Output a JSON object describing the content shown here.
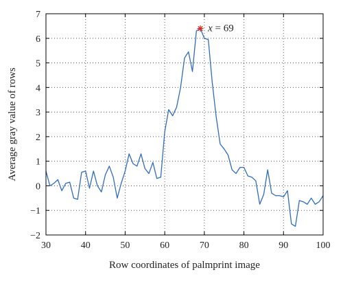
{
  "chart_data": {
    "type": "line",
    "title": "",
    "xlabel": "Row coordinates of palmprint image",
    "ylabel": "Average gray value of rows",
    "xlim": [
      30,
      100
    ],
    "ylim": [
      -2,
      7
    ],
    "xticks": [
      30,
      40,
      50,
      60,
      70,
      80,
      90,
      100
    ],
    "yticks": [
      -2,
      -1,
      0,
      1,
      2,
      3,
      4,
      5,
      6,
      7
    ],
    "grid": true,
    "grid_style": "dotted",
    "series": [
      {
        "color": "#2e6bbf",
        "x": [
          30,
          31,
          32,
          33,
          34,
          35,
          36,
          37,
          38,
          39,
          40,
          41,
          42,
          43,
          44,
          45,
          46,
          47,
          48,
          49,
          50,
          51,
          52,
          53,
          54,
          55,
          56,
          57,
          58,
          59,
          60,
          61,
          62,
          63,
          64,
          65,
          66,
          67,
          68,
          69,
          70,
          71,
          72,
          73,
          74,
          75,
          76,
          77,
          78,
          79,
          80,
          81,
          82,
          83,
          84,
          85,
          86,
          87,
          88,
          89,
          90,
          91,
          92,
          93,
          94,
          95,
          96,
          97,
          98,
          99,
          100
        ],
        "y": [
          0.6,
          0.0,
          0.1,
          0.25,
          -0.2,
          0.1,
          0.15,
          -0.5,
          -0.55,
          0.55,
          0.6,
          -0.1,
          0.6,
          0.0,
          -0.25,
          0.45,
          0.8,
          0.35,
          -0.5,
          0.1,
          0.6,
          1.3,
          0.9,
          0.8,
          1.3,
          0.7,
          0.5,
          0.95,
          0.3,
          0.35,
          2.2,
          3.1,
          2.85,
          3.2,
          4.0,
          5.2,
          5.45,
          4.65,
          6.3,
          6.4,
          6.0,
          5.95,
          4.2,
          2.8,
          1.7,
          1.5,
          1.25,
          0.65,
          0.5,
          0.75,
          0.75,
          0.4,
          0.35,
          0.2,
          -0.75,
          -0.35,
          0.65,
          -0.3,
          -0.4,
          -0.4,
          -0.45,
          -0.2,
          -1.55,
          -1.65,
          -0.6,
          -0.65,
          -0.75,
          -0.5,
          -0.75,
          -0.65,
          -0.4
        ]
      }
    ],
    "annotations": [
      {
        "x": 69,
        "y": 6.4,
        "marker": "asterisk",
        "marker_color": "#d9241c",
        "label_var": "x",
        "label_rest": " = 69"
      }
    ]
  }
}
